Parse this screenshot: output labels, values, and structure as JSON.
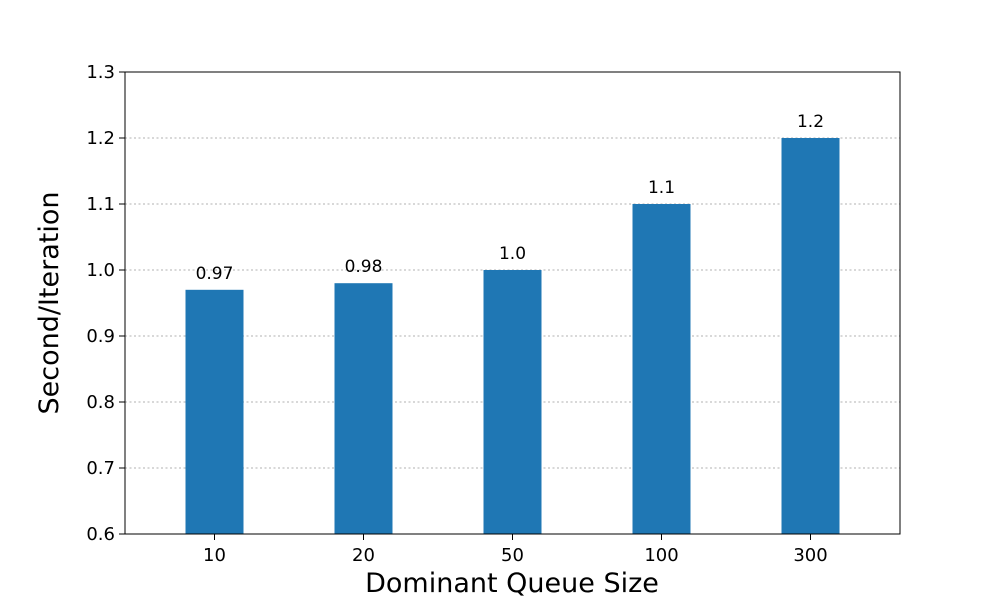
{
  "chart_data": {
    "type": "bar",
    "categories": [
      "10",
      "20",
      "50",
      "100",
      "300"
    ],
    "values": [
      0.97,
      0.98,
      1.0,
      1.1,
      1.2
    ],
    "data_labels": [
      "0.97",
      "0.98",
      "1.0",
      "1.1",
      "1.2"
    ],
    "xlabel": "Dominant Queue Size",
    "ylabel": "Second/Iteration",
    "ylim": [
      0.6,
      1.3
    ],
    "yticks": [
      "0.6",
      "0.7",
      "0.8",
      "0.9",
      "1.0",
      "1.1",
      "1.2",
      "1.3"
    ],
    "grid": true,
    "grid_axis": "y",
    "bar_color": "#1f77b4",
    "grid_color": "#b0b0b0"
  }
}
